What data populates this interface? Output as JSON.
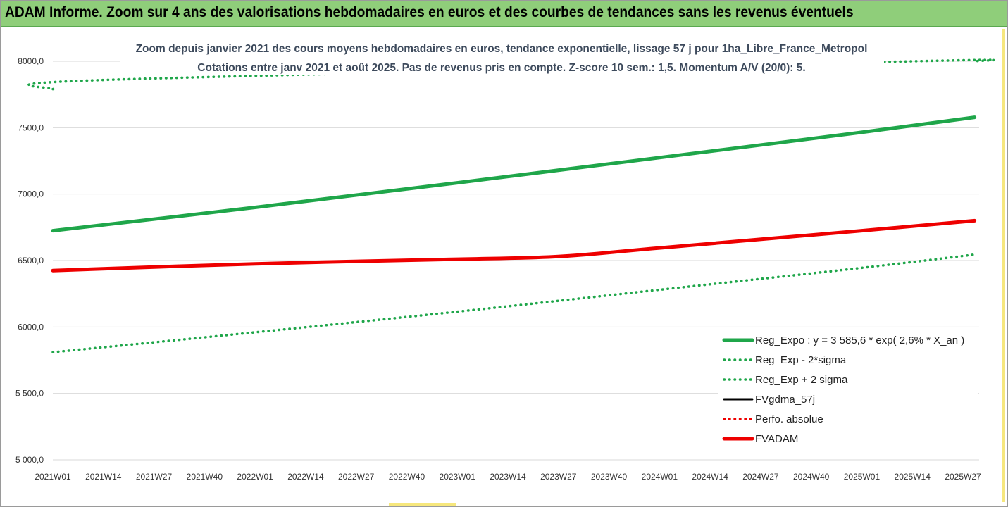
{
  "header": {
    "title": "ADAM Informe. Zoom sur 4 ans des valorisations hebdomadaires en euros et des courbes de tendances sans les revenus éventuels"
  },
  "colors": {
    "header_bg": "#8fce7a",
    "green_trend": "#1fa64a",
    "red_fvadam": "#ee0000",
    "black": "#000000"
  },
  "chart_data": {
    "type": "line",
    "title_line1": "Zoom depuis janvier 2021 des cours moyens hebdomadaires en euros, tendance exponentielle, lissage 57 j pour 1ha_Libre_France_Metropol",
    "title_line2": "Cotations entre janv 2021 et août 2025.  Pas de revenus pris en compte. Z-score 10 sem.: 1,5. Momentum A/V (20/0): 5.",
    "x_ticks": [
      "2021W01",
      "2021W14",
      "2021W27",
      "2021W40",
      "2022W01",
      "2022W14",
      "2022W27",
      "2022W40",
      "2023W01",
      "2023W14",
      "2023W27",
      "2023W40",
      "2024W01",
      "2024W14",
      "2024W27",
      "2024W40",
      "2025W01",
      "2025W14",
      "2025W27"
    ],
    "y_ticks": [
      "5 000,0",
      "5 500,0",
      "6000,0",
      "6500,0",
      "7000,0",
      "7500,0",
      "8000,0"
    ],
    "ylim": [
      5000,
      8000
    ],
    "legend_position": "right",
    "grid": true,
    "series": [
      {
        "name": "Reg_Expo : y = 3 585,6 * exp( 2,6% *  X_an )",
        "style": "solid-thick",
        "color": "#1fa64a",
        "x": [
          "2021W01",
          "2022W01",
          "2023W01",
          "2024W01",
          "2025W01",
          "2025W30"
        ],
        "values": [
          6725,
          6900,
          7085,
          7275,
          7465,
          7578
        ]
      },
      {
        "name": "Reg_Exp - 2*sigma",
        "style": "dotted",
        "color": "#1fa64a",
        "x": [
          "2021W01",
          "2022W01",
          "2023W01",
          "2024W01",
          "2025W01",
          "2025W30"
        ],
        "values": [
          5810,
          5960,
          6115,
          6280,
          6445,
          6545
        ]
      },
      {
        "name": "Reg_Exp + 2 sigma",
        "style": "dotted",
        "color": "#1fa64a",
        "x": [
          "2021W01",
          "2021W15",
          "2025W14",
          "2025W30"
        ],
        "values": [
          7790,
          7860,
          8000,
          8000
        ]
      },
      {
        "name": "FVgdma_57j",
        "style": "solid",
        "color": "#000000",
        "x": [],
        "values": []
      },
      {
        "name": "Perfo. absolue",
        "style": "dotted",
        "color": "#ee0000",
        "x": [],
        "values": []
      },
      {
        "name": "FVADAM",
        "style": "solid-thick",
        "color": "#ee0000",
        "x": [
          "2021W01",
          "2022W01",
          "2023W01",
          "2023W27",
          "2024W01",
          "2025W01",
          "2025W30"
        ],
        "values": [
          6425,
          6475,
          6510,
          6530,
          6595,
          6725,
          6800
        ]
      }
    ]
  }
}
